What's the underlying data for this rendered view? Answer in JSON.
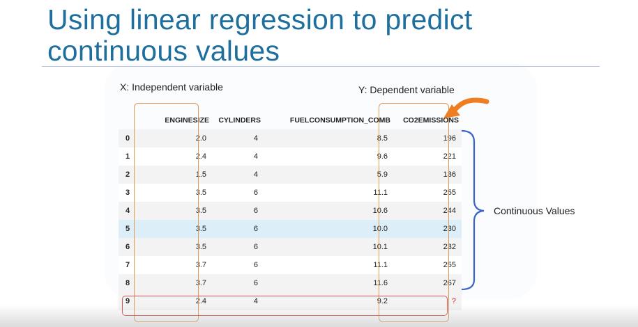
{
  "slide": {
    "title_line1": "Using linear regression to predict",
    "title_line2": "continuous values",
    "x_label": "X: Independent variable",
    "y_label": "Y: Dependent variable",
    "continuous_label": "Continuous Values"
  },
  "table": {
    "headers": [
      "ENGINESIZE",
      "CYLINDERS",
      "FUELCONSUMPTION_COMB",
      "CO2EMISSIONS"
    ],
    "rows": [
      {
        "index": "0",
        "enginesize": "2.0",
        "cylinders": "4",
        "fuel": "8.5",
        "co2": "196"
      },
      {
        "index": "1",
        "enginesize": "2.4",
        "cylinders": "4",
        "fuel": "9.6",
        "co2": "221"
      },
      {
        "index": "2",
        "enginesize": "1.5",
        "cylinders": "4",
        "fuel": "5.9",
        "co2": "136"
      },
      {
        "index": "3",
        "enginesize": "3.5",
        "cylinders": "6",
        "fuel": "11.1",
        "co2": "255"
      },
      {
        "index": "4",
        "enginesize": "3.5",
        "cylinders": "6",
        "fuel": "10.6",
        "co2": "244"
      },
      {
        "index": "5",
        "enginesize": "3.5",
        "cylinders": "6",
        "fuel": "10.0",
        "co2": "230"
      },
      {
        "index": "6",
        "enginesize": "3.5",
        "cylinders": "6",
        "fuel": "10.1",
        "co2": "232"
      },
      {
        "index": "7",
        "enginesize": "3.7",
        "cylinders": "6",
        "fuel": "11.1",
        "co2": "255"
      },
      {
        "index": "8",
        "enginesize": "3.7",
        "cylinders": "6",
        "fuel": "11.6",
        "co2": "267"
      },
      {
        "index": "9",
        "enginesize": "2.4",
        "cylinders": "4",
        "fuel": "9.2",
        "co2": "?"
      }
    ]
  },
  "colors": {
    "title": "#1f6f9e",
    "orange_box": "#e39a55",
    "arrow": "#ef7d22",
    "brace": "#3b63c8",
    "red_box": "#d9534f",
    "highlight_row": "#dcefF8"
  }
}
